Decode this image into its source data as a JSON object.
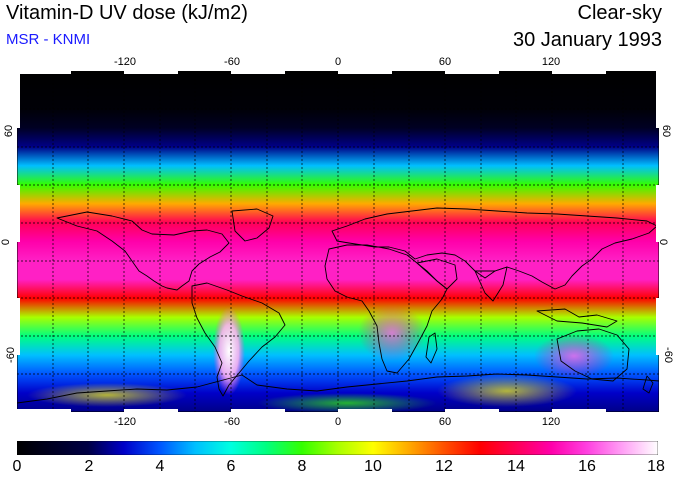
{
  "header": {
    "title": "Vitamin-D UV dose (kJ/m2)",
    "source": "MSR - KNMI",
    "condition": "Clear-sky",
    "date": "30 January 1993"
  },
  "colors": {
    "source": "#1a1aff",
    "continent": "#000000",
    "grid": "#000000"
  },
  "axes": {
    "lon_ticks": [
      "-120",
      "-60",
      "0",
      "60",
      "120"
    ],
    "lat_ticks": [
      "60",
      "0",
      "-60"
    ]
  },
  "map_data": {
    "quantity": "Vitamin-D UV dose",
    "unit": "kJ/m2",
    "lon_range": [
      -180,
      180
    ],
    "lat_range": [
      -90,
      90
    ],
    "grid_spacing_deg": 20,
    "zonal_profile": [
      {
        "lat": 90,
        "value": 0
      },
      {
        "lat": 70,
        "value": 0.2
      },
      {
        "lat": 60,
        "value": 1
      },
      {
        "lat": 50,
        "value": 2.5
      },
      {
        "lat": 40,
        "value": 5
      },
      {
        "lat": 30,
        "value": 8
      },
      {
        "lat": 20,
        "value": 11
      },
      {
        "lat": 10,
        "value": 14
      },
      {
        "lat": 0,
        "value": 15
      },
      {
        "lat": -10,
        "value": 15.5
      },
      {
        "lat": -20,
        "value": 15.5
      },
      {
        "lat": -30,
        "value": 13
      },
      {
        "lat": -40,
        "value": 9
      },
      {
        "lat": -50,
        "value": 7
      },
      {
        "lat": -60,
        "value": 5
      },
      {
        "lat": -70,
        "value": 4
      },
      {
        "lat": -80,
        "value": 3
      },
      {
        "lat": -90,
        "value": 2.5
      }
    ],
    "peak_region": "Andes (South America)",
    "peak_value": 18
  },
  "colorbar": {
    "labels": [
      "0",
      "2",
      "4",
      "6",
      "8",
      "10",
      "12",
      "14",
      "16",
      "18"
    ],
    "min": 0,
    "max": 18,
    "stops": [
      {
        "value": 0,
        "color": "#000000"
      },
      {
        "value": 2,
        "color": "#000045"
      },
      {
        "value": 3,
        "color": "#0000c8"
      },
      {
        "value": 4,
        "color": "#0055ff"
      },
      {
        "value": 5,
        "color": "#00bfff"
      },
      {
        "value": 6,
        "color": "#00ffe0"
      },
      {
        "value": 7,
        "color": "#00ff80"
      },
      {
        "value": 8,
        "color": "#33ff00"
      },
      {
        "value": 9,
        "color": "#a8ff00"
      },
      {
        "value": 10,
        "color": "#ffff00"
      },
      {
        "value": 11,
        "color": "#ffaa00"
      },
      {
        "value": 12,
        "color": "#ff5000"
      },
      {
        "value": 13,
        "color": "#ff0000"
      },
      {
        "value": 14,
        "color": "#ff0055"
      },
      {
        "value": 15,
        "color": "#ff00aa"
      },
      {
        "value": 16,
        "color": "#ff40e0"
      },
      {
        "value": 17,
        "color": "#ffa0f5"
      },
      {
        "value": 18,
        "color": "#ffffff"
      }
    ]
  }
}
